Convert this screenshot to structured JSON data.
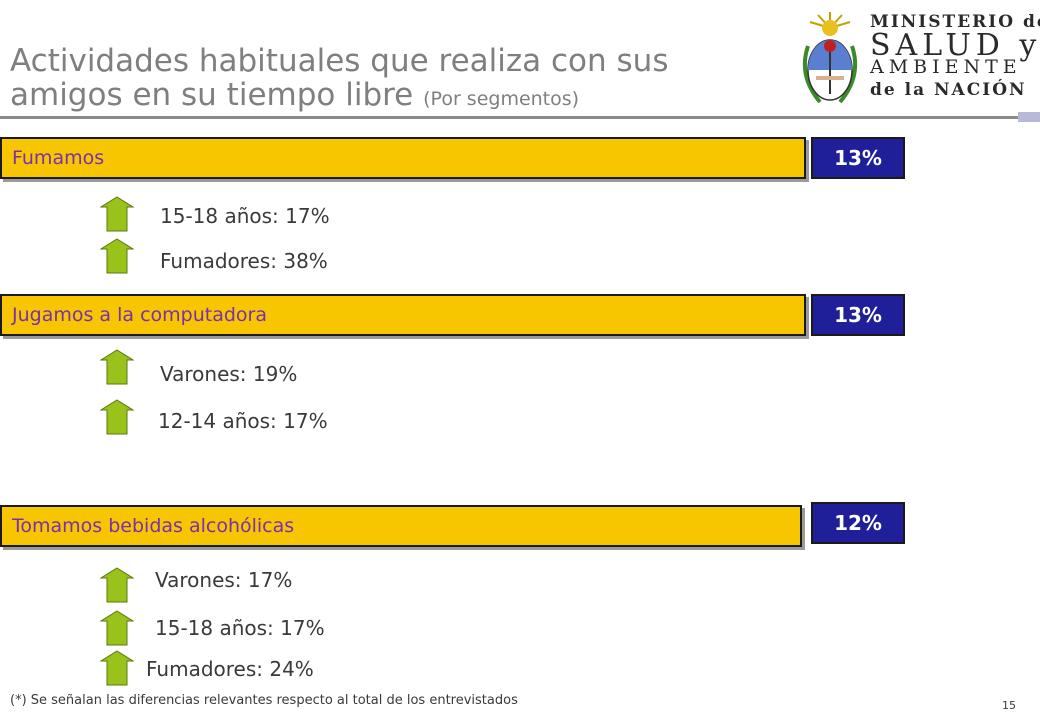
{
  "title": {
    "main": "Actividades habituales que realiza con sus amigos en su tiempo libre",
    "sub": "(Por segmentos)"
  },
  "logo": {
    "line1": "MINISTERIO de",
    "line2": "SALUD y",
    "line3": "AMBIENTE",
    "line4": "de la NACIÓN"
  },
  "activities": [
    {
      "label": "Fumamos",
      "total": "13%",
      "segments": [
        "15-18 años: 17%",
        "Fumadores: 38%"
      ]
    },
    {
      "label": "Jugamos a la computadora",
      "total": "13%",
      "segments": [
        "Varones: 19%",
        "12-14 años: 17%"
      ]
    },
    {
      "label": "Tomamos bebidas alcohólicas",
      "total": "12%",
      "segments": [
        "Varones: 17%",
        "15-18 años: 17%",
        "Fumadores: 24%"
      ]
    }
  ],
  "footnote": "(*) Se señalan las diferencias relevantes respecto al total de los entrevistados",
  "page_number": "15",
  "colors": {
    "bar": "#f7c600",
    "pct_box": "#1f1f9a",
    "arrow": "#99c21a",
    "label": "#7a2fb0"
  },
  "icons": {
    "segment": "up-arrow-icon",
    "logo": "coat-of-arms-icon"
  }
}
